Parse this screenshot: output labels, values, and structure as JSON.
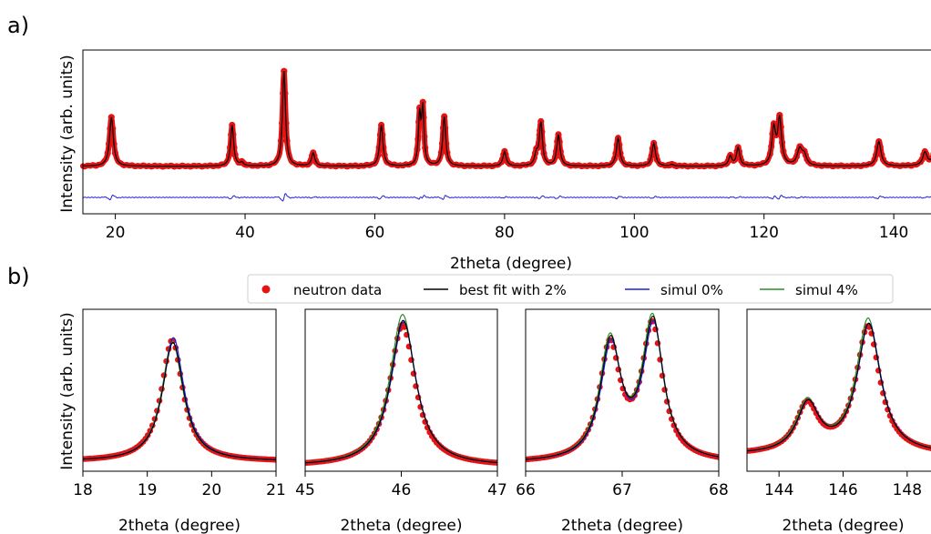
{
  "panel_labels": {
    "a": "a)",
    "b": "b)"
  },
  "colors": {
    "data": "#e41414",
    "fit": "#000000",
    "sim0": "#1f1fd6",
    "sim4": "#2a8c2a"
  },
  "legend": {
    "entries": [
      {
        "key": "data",
        "label": "neutron data"
      },
      {
        "key": "fit",
        "label": "best fit with 2%"
      },
      {
        "key": "sim0",
        "label": "simul 0%"
      },
      {
        "key": "sim4",
        "label": "simul 4%"
      }
    ]
  },
  "chart_data": [
    {
      "type": "scatter",
      "panel": "a)",
      "xlabel": "2theta (degree)",
      "ylabel": "Intensity (arb. units)",
      "xlim": [
        15,
        147
      ],
      "ylim": [
        0,
        1
      ],
      "yticks_shown": false,
      "xticks": [
        20,
        40,
        60,
        80,
        100,
        120,
        140
      ],
      "background": 0.29,
      "peaks": [
        {
          "x": 19.4,
          "height": 0.3,
          "width": 0.35
        },
        {
          "x": 38.0,
          "height": 0.25,
          "width": 0.28
        },
        {
          "x": 39.5,
          "height": 0.02,
          "width": 0.3
        },
        {
          "x": 46.0,
          "height": 0.58,
          "width": 0.28
        },
        {
          "x": 50.5,
          "height": 0.08,
          "width": 0.3
        },
        {
          "x": 61.0,
          "height": 0.25,
          "width": 0.3
        },
        {
          "x": 66.9,
          "height": 0.3,
          "width": 0.22
        },
        {
          "x": 67.4,
          "height": 0.34,
          "width": 0.22
        },
        {
          "x": 70.7,
          "height": 0.3,
          "width": 0.28
        },
        {
          "x": 80.0,
          "height": 0.09,
          "width": 0.3
        },
        {
          "x": 84.9,
          "height": 0.07,
          "width": 0.3
        },
        {
          "x": 85.6,
          "height": 0.26,
          "width": 0.28
        },
        {
          "x": 88.3,
          "height": 0.19,
          "width": 0.3
        },
        {
          "x": 97.5,
          "height": 0.17,
          "width": 0.32
        },
        {
          "x": 103.0,
          "height": 0.14,
          "width": 0.32
        },
        {
          "x": 105.8,
          "height": 0.01,
          "width": 0.3
        },
        {
          "x": 114.8,
          "height": 0.06,
          "width": 0.3
        },
        {
          "x": 116.0,
          "height": 0.11,
          "width": 0.3
        },
        {
          "x": 121.5,
          "height": 0.22,
          "width": 0.35
        },
        {
          "x": 122.4,
          "height": 0.28,
          "width": 0.35
        },
        {
          "x": 125.5,
          "height": 0.1,
          "width": 0.45
        },
        {
          "x": 126.2,
          "height": 0.06,
          "width": 0.4
        },
        {
          "x": 137.7,
          "height": 0.15,
          "width": 0.4
        },
        {
          "x": 144.8,
          "height": 0.08,
          "width": 0.4
        },
        {
          "x": 146.8,
          "height": 0.25,
          "width": 0.4
        }
      ],
      "series": [
        {
          "name": "neutron data",
          "color": "#e41414",
          "style": "markers"
        },
        {
          "name": "best fit with 2%",
          "color": "#000000",
          "style": "line"
        },
        {
          "name": "difference",
          "color": "#1f1fd6",
          "style": "line",
          "offset": 0.1
        }
      ]
    },
    {
      "type": "scatter",
      "panel": "b-1",
      "xlabel": "2theta (degree)",
      "ylabel": "Intensity (arb. units)",
      "xlim": [
        18,
        21
      ],
      "xticks": [
        18,
        19,
        20,
        21
      ],
      "ylim": [
        0,
        1
      ],
      "yticks_shown": false,
      "peaks": [
        {
          "x": 19.4,
          "height": 0.75,
          "width": 0.2
        }
      ],
      "background": 0.06,
      "series_scale": {
        "data": 1.0,
        "fit": 0.98,
        "sim0": 1.02,
        "sim4": 0.99
      }
    },
    {
      "type": "scatter",
      "panel": "b-2",
      "xlabel": "2theta (degree)",
      "xlim": [
        45,
        47
      ],
      "xticks": [
        45,
        46,
        47
      ],
      "ylim": [
        0,
        1
      ],
      "yticks_shown": false,
      "peaks": [
        {
          "x": 46.02,
          "height": 0.92,
          "width": 0.16
        }
      ],
      "background": 0.03,
      "series_scale": {
        "data": 0.95,
        "fit": 0.98,
        "sim0": 0.97,
        "sim4": 1.02
      }
    },
    {
      "type": "scatter",
      "panel": "b-3",
      "xlabel": "2theta (degree)",
      "xlim": [
        66,
        68
      ],
      "xticks": [
        66,
        67,
        68
      ],
      "ylim": [
        0,
        1
      ],
      "yticks_shown": false,
      "peaks": [
        {
          "x": 66.88,
          "height": 0.72,
          "width": 0.13
        },
        {
          "x": 67.32,
          "height": 0.85,
          "width": 0.13
        }
      ],
      "background": 0.05,
      "series_scale": {
        "data": 0.97,
        "fit": 1.0,
        "sim0": 0.97,
        "sim4": 1.02
      }
    },
    {
      "type": "scatter",
      "panel": "b-4",
      "xlabel": "2theta (degree)",
      "xlim": [
        143,
        149
      ],
      "xticks": [
        144,
        146,
        148
      ],
      "ylim": [
        0,
        1
      ],
      "yticks_shown": false,
      "peaks": [
        {
          "x": 144.9,
          "height": 0.3,
          "width": 0.42
        },
        {
          "x": 146.8,
          "height": 0.8,
          "width": 0.45
        }
      ],
      "background": 0.1,
      "series_scale": {
        "data": 0.98,
        "fit": 1.0,
        "sim0": 1.0,
        "sim4": 1.04
      }
    }
  ]
}
